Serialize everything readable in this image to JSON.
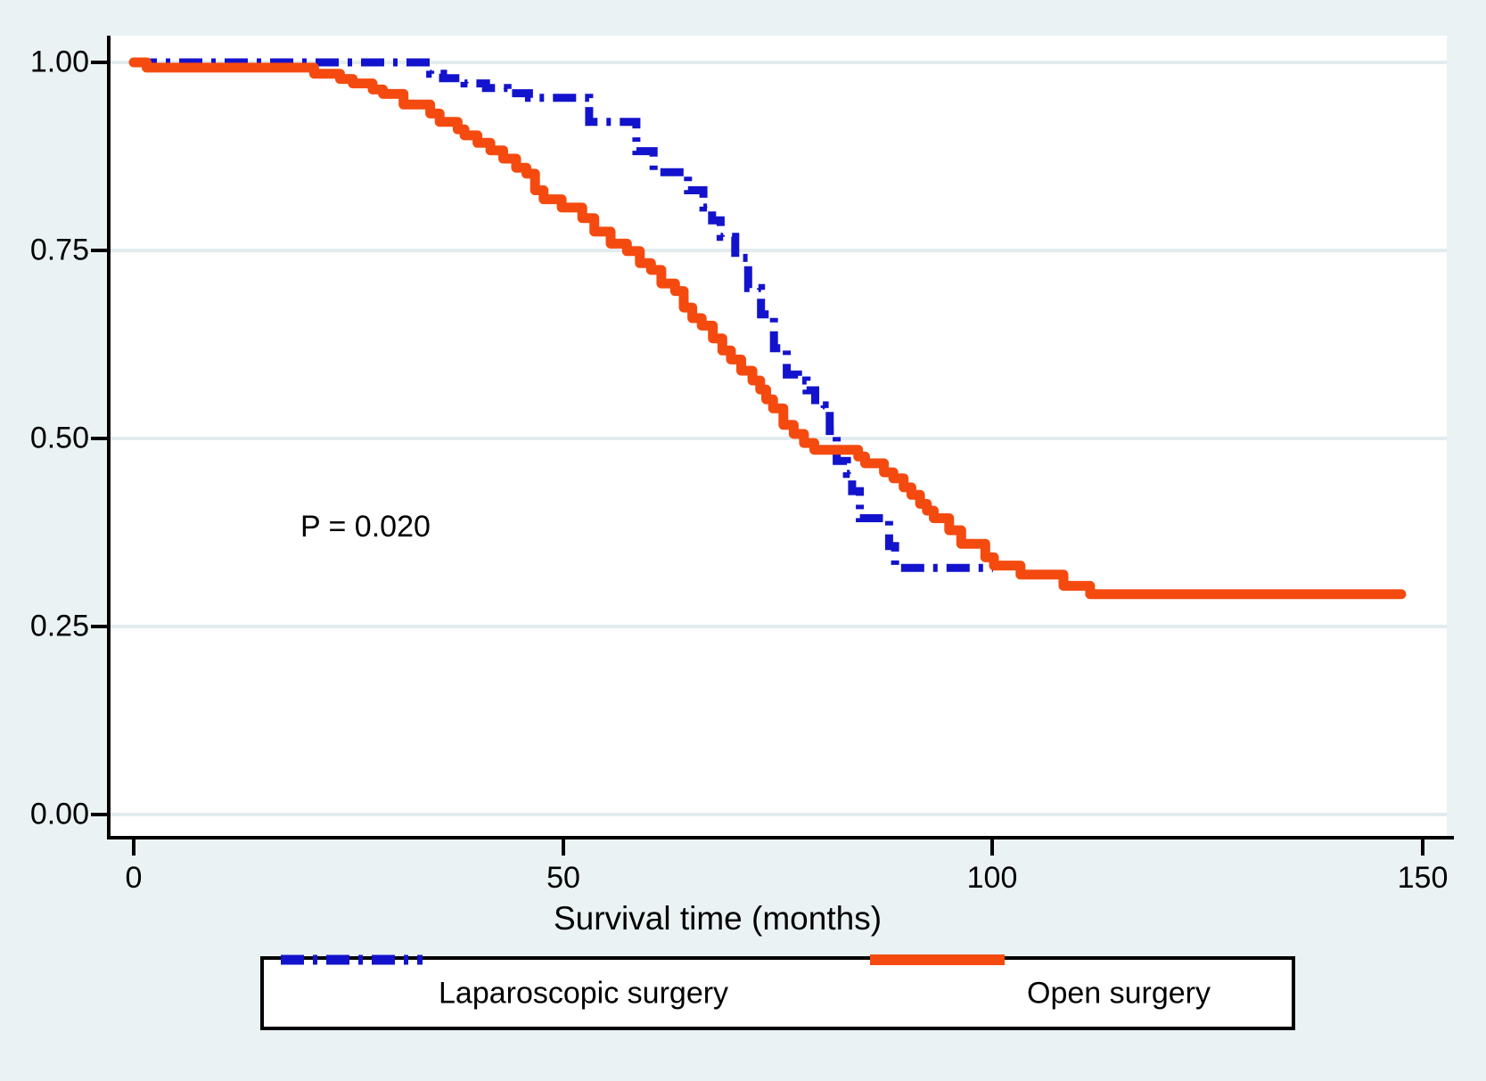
{
  "figure": {
    "background_color": "#eaf2f3",
    "plot_background_color": "#ffffff",
    "gridline_color": "#e2ecef"
  },
  "chart_data": {
    "type": "line",
    "subtype": "kaplan-meier-step",
    "title": "",
    "xlabel": "Survival time (months)",
    "ylabel": "",
    "xlim": [
      0,
      153
    ],
    "ylim": [
      0,
      1
    ],
    "grid": "horizontal",
    "legend_position": "bottom",
    "xtick_values": [
      0,
      50,
      100,
      150
    ],
    "xtick_labels": [
      "0",
      "50",
      "100",
      "150"
    ],
    "ytick_values": [
      1.0,
      0.75,
      0.5,
      0.25,
      0.0
    ],
    "ytick_labels": [
      "1.00",
      "0.75",
      "0.50",
      "0.25",
      "0.00"
    ],
    "annotation": {
      "text": "P = 0.020",
      "x_month": 20,
      "y_survival": 0.4
    },
    "series": [
      {
        "name": "Laparoscopic surgery",
        "color": "#1313cd",
        "line_style": "dash-dot",
        "end_month": 100,
        "points": [
          [
            0,
            1.0
          ],
          [
            34.5,
            0.985
          ],
          [
            36,
            0.979
          ],
          [
            38.5,
            0.972
          ],
          [
            41,
            0.966
          ],
          [
            43.5,
            0.959
          ],
          [
            46,
            0.953
          ],
          [
            53,
            0.921
          ],
          [
            58.5,
            0.882
          ],
          [
            60.5,
            0.854
          ],
          [
            64.5,
            0.83
          ],
          [
            66.3,
            0.807
          ],
          [
            67.3,
            0.79
          ],
          [
            68.3,
            0.768
          ],
          [
            70,
            0.74
          ],
          [
            71.5,
            0.7
          ],
          [
            73,
            0.665
          ],
          [
            74.5,
            0.62
          ],
          [
            76,
            0.585
          ],
          [
            77.3,
            0.577
          ],
          [
            78.3,
            0.564
          ],
          [
            79.3,
            0.544
          ],
          [
            80.4,
            0.53
          ],
          [
            81,
            0.51
          ],
          [
            81.8,
            0.47
          ],
          [
            83,
            0.453
          ],
          [
            83.6,
            0.43
          ],
          [
            84.5,
            0.394
          ],
          [
            87.9,
            0.357
          ],
          [
            88.6,
            0.328
          ]
        ]
      },
      {
        "name": "Open surgery",
        "color": "#f54a0f",
        "line_style": "solid",
        "end_month": 147.5,
        "points": [
          [
            0,
            1.0
          ],
          [
            1.5,
            0.993
          ],
          [
            21,
            0.985
          ],
          [
            24,
            0.978
          ],
          [
            25.5,
            0.972
          ],
          [
            27.8,
            0.964
          ],
          [
            29,
            0.958
          ],
          [
            31.4,
            0.944
          ],
          [
            34.5,
            0.932
          ],
          [
            35.6,
            0.921
          ],
          [
            37.7,
            0.911
          ],
          [
            38.5,
            0.903
          ],
          [
            40,
            0.893
          ],
          [
            41.5,
            0.883
          ],
          [
            43,
            0.872
          ],
          [
            44.5,
            0.86
          ],
          [
            45.7,
            0.852
          ],
          [
            46.7,
            0.83
          ],
          [
            47.7,
            0.818
          ],
          [
            49.8,
            0.807
          ],
          [
            52.2,
            0.793
          ],
          [
            53.6,
            0.775
          ],
          [
            55.5,
            0.759
          ],
          [
            57.4,
            0.749
          ],
          [
            58.9,
            0.733
          ],
          [
            60.2,
            0.724
          ],
          [
            61.4,
            0.706
          ],
          [
            63,
            0.696
          ],
          [
            64,
            0.674
          ],
          [
            65,
            0.66
          ],
          [
            66.1,
            0.65
          ],
          [
            67.4,
            0.633
          ],
          [
            68.5,
            0.617
          ],
          [
            69.5,
            0.605
          ],
          [
            70.7,
            0.59
          ],
          [
            72,
            0.577
          ],
          [
            72.9,
            0.565
          ],
          [
            73.6,
            0.552
          ],
          [
            74.4,
            0.54
          ],
          [
            75.6,
            0.518
          ],
          [
            76.8,
            0.506
          ],
          [
            78,
            0.494
          ],
          [
            79.2,
            0.485
          ],
          [
            84.3,
            0.476
          ],
          [
            85.1,
            0.467
          ],
          [
            87.3,
            0.455
          ],
          [
            88.4,
            0.447
          ],
          [
            89.6,
            0.435
          ],
          [
            90.5,
            0.425
          ],
          [
            91.5,
            0.413
          ],
          [
            92.3,
            0.404
          ],
          [
            93.1,
            0.394
          ],
          [
            94.9,
            0.378
          ],
          [
            96.3,
            0.36
          ],
          [
            99.1,
            0.342
          ],
          [
            100.1,
            0.331
          ],
          [
            103.2,
            0.319
          ],
          [
            108.2,
            0.304
          ],
          [
            111.3,
            0.293
          ]
        ]
      }
    ]
  }
}
